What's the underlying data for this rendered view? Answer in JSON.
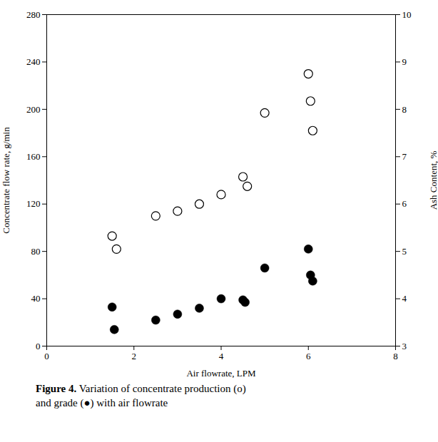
{
  "chart_data": {
    "type": "scatter",
    "xlabel": "Air flowrate, LPM",
    "ylabel": "Concentrate flow rate, g/min",
    "y2label": "Ash Content, %",
    "caption": [
      "Figure 4.",
      " Variation of concentrate production (o)\nand grade (●) with air flowrate"
    ],
    "xlim": [
      0,
      8
    ],
    "xticks": [
      0,
      2,
      4,
      6,
      8
    ],
    "ylim": [
      0,
      280
    ],
    "yticks": [
      0,
      40,
      80,
      120,
      160,
      200,
      240,
      280
    ],
    "y2lim": [
      3,
      10
    ],
    "y2ticks": [
      3,
      4,
      5,
      6,
      7,
      8,
      9,
      10
    ],
    "grid": false,
    "series": [
      {
        "color": "black",
        "marker": "open circle",
        "x": [
          1.5,
          1.6,
          2.5,
          3.0,
          3.5,
          4.0,
          4.5,
          4.6,
          5.0,
          6.0,
          6.05,
          6.1
        ],
        "values": [
          93,
          82,
          110,
          114,
          120,
          128,
          143,
          135,
          197,
          230,
          207,
          182
        ]
      },
      {
        "color": "black",
        "marker": "circle",
        "x": [
          1.5,
          1.55,
          2.5,
          3.0,
          3.5,
          4.0,
          4.5,
          4.55,
          5.0,
          6.0,
          6.05,
          6.1
        ],
        "values": [
          33,
          14,
          22,
          27,
          32,
          40,
          39,
          37,
          66,
          82,
          60,
          55
        ]
      }
    ]
  }
}
